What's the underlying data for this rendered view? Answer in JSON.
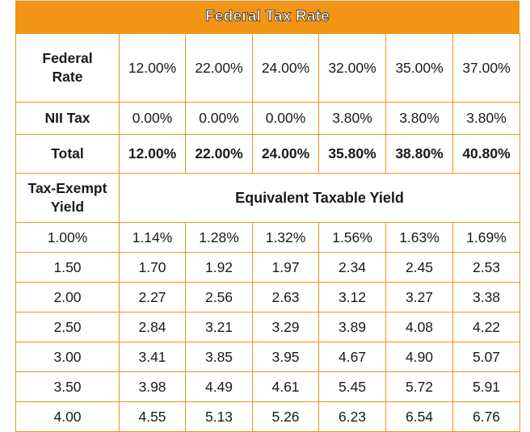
{
  "header": {
    "title": "Federal Tax Rate"
  },
  "rows": {
    "federal_rate": {
      "label": "Federal Rate",
      "values": [
        "12.00%",
        "22.00%",
        "24.00%",
        "32.00%",
        "35.00%",
        "37.00%"
      ]
    },
    "nii_tax": {
      "label": "NII Tax",
      "values": [
        "0.00%",
        "0.00%",
        "0.00%",
        "3.80%",
        "3.80%",
        "3.80%"
      ]
    },
    "total": {
      "label": "Total",
      "values": [
        "12.00%",
        "22.00%",
        "24.00%",
        "35.80%",
        "38.80%",
        "40.80%"
      ]
    }
  },
  "yield_header": {
    "label": "Tax-Exempt Yield",
    "equivalent_label": "Equivalent Taxable Yield"
  },
  "yield_rows": [
    {
      "tax_exempt": "1.00%",
      "values": [
        "1.14%",
        "1.28%",
        "1.32%",
        "1.56%",
        "1.63%",
        "1.69%"
      ]
    },
    {
      "tax_exempt": "1.50",
      "values": [
        "1.70",
        "1.92",
        "1.97",
        "2.34",
        "2.45",
        "2.53"
      ]
    },
    {
      "tax_exempt": "2.00",
      "values": [
        "2.27",
        "2.56",
        "2.63",
        "3.12",
        "3.27",
        "3.38"
      ]
    },
    {
      "tax_exempt": "2.50",
      "values": [
        "2.84",
        "3.21",
        "3.29",
        "3.89",
        "4.08",
        "4.22"
      ]
    },
    {
      "tax_exempt": "3.00",
      "values": [
        "3.41",
        "3.85",
        "3.95",
        "4.67",
        "4.90",
        "5.07"
      ]
    },
    {
      "tax_exempt": "3.50",
      "values": [
        "3.98",
        "4.49",
        "4.61",
        "5.45",
        "5.72",
        "5.91"
      ]
    },
    {
      "tax_exempt": "4.00",
      "values": [
        "4.55",
        "5.13",
        "5.26",
        "6.23",
        "6.54",
        "6.76"
      ]
    }
  ],
  "colors": {
    "accent": "#f29416",
    "header_text": "#ffffff"
  }
}
